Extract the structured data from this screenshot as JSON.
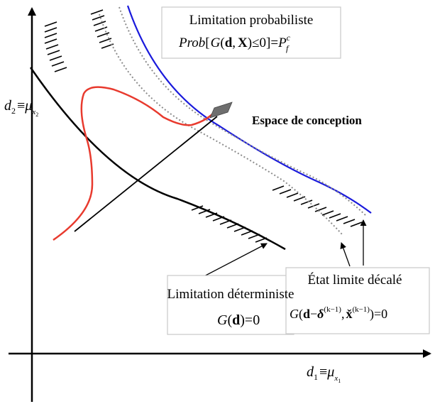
{
  "labels": {
    "probabilistic_title": "Limitation probabiliste",
    "probabilistic_formula": {
      "prob": "Prob",
      "open_bracket": "[",
      "g": "G",
      "open_paren": "(",
      "d": "d",
      "comma": ",",
      "x": "X",
      "close_paren": ")",
      "le_zero_bracket": "≤0]=",
      "p": "P",
      "p_sup": "c",
      "p_sub": "f"
    },
    "design_space": "Espace de conception",
    "shifted_title": "État limite décalé",
    "shifted_formula": {
      "g": "G",
      "open_paren": "(",
      "d": "d",
      "minus": "−",
      "delta": "δ",
      "delta_sup": "(k−1)",
      "comma": ",",
      "x": "x̌",
      "x_sup": "(k−1)",
      "close_eq": ")=0"
    },
    "deterministic_title": "Limitation déterministe",
    "deterministic_formula": {
      "g": "G",
      "open_paren": "(",
      "d": "d",
      "close_eq": ")=0"
    },
    "axis_x": {
      "d": "d",
      "d_sub": "1",
      "equiv": "≡",
      "mu": "μ",
      "mu_sub": "x",
      "mu_sub_sub": "1"
    },
    "axis_y": {
      "d": "d",
      "d_sub": "2",
      "equiv": "≡",
      "mu": "μ",
      "mu_sub": "x",
      "mu_sub_sub": "2"
    }
  },
  "colors": {
    "axes": "#000000",
    "deterministic_curve": "#000000",
    "probabilistic_curve": "#1a1adc",
    "shifted_curves": "#8c8c8c",
    "pdf_curve": "#e83a2e",
    "optimum_marker": "#6e6e6e",
    "label_border": "#c8c8c8"
  }
}
